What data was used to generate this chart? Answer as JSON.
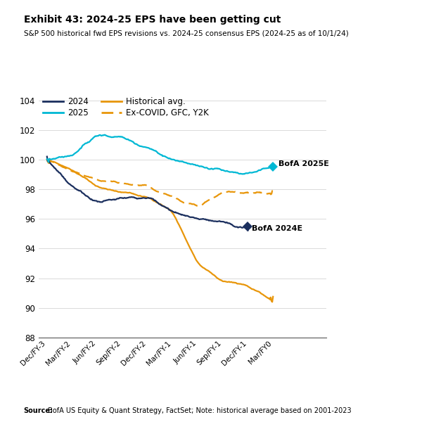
{
  "title": "Exhibit 43: 2024-25 EPS have been getting cut",
  "subtitle": "S&P 500 historical fwd EPS revisions vs. 2024-25 consensus EPS (2024-25 as of 10/1/24)",
  "source_bold": "Source:",
  "source_rest": " BofA US Equity & Quant Strategy, FactSet; Note: historical average based on 2001-2023",
  "ylim": [
    88,
    104.5
  ],
  "yticks": [
    88,
    90,
    92,
    94,
    96,
    98,
    100,
    102,
    104
  ],
  "xtick_labels": [
    "Dec/FY-3",
    "Mar/FY-2",
    "Jun/FY-2",
    "Sep/FY-2",
    "Dec/FY-2",
    "Mar/FY-1",
    "Jun/FY-1",
    "Sep/FY-1",
    "Dec/FY-1",
    "Mar/FY0"
  ],
  "xtick_positions": [
    0,
    9,
    18,
    27,
    36,
    45,
    54,
    63,
    72,
    81
  ],
  "colors": {
    "y2024": "#1b2f5e",
    "y2025": "#00b8d4",
    "hist_avg": "#e8960a",
    "ex_covid": "#e8960a",
    "bofa2025e": "#00b8d4",
    "bofa2024e": "#1b2f5e"
  },
  "bofa2025e_val": 99.5,
  "bofa2024e_val": 95.5,
  "bofa2025e_x": 81,
  "bofa2024e_x": 72
}
